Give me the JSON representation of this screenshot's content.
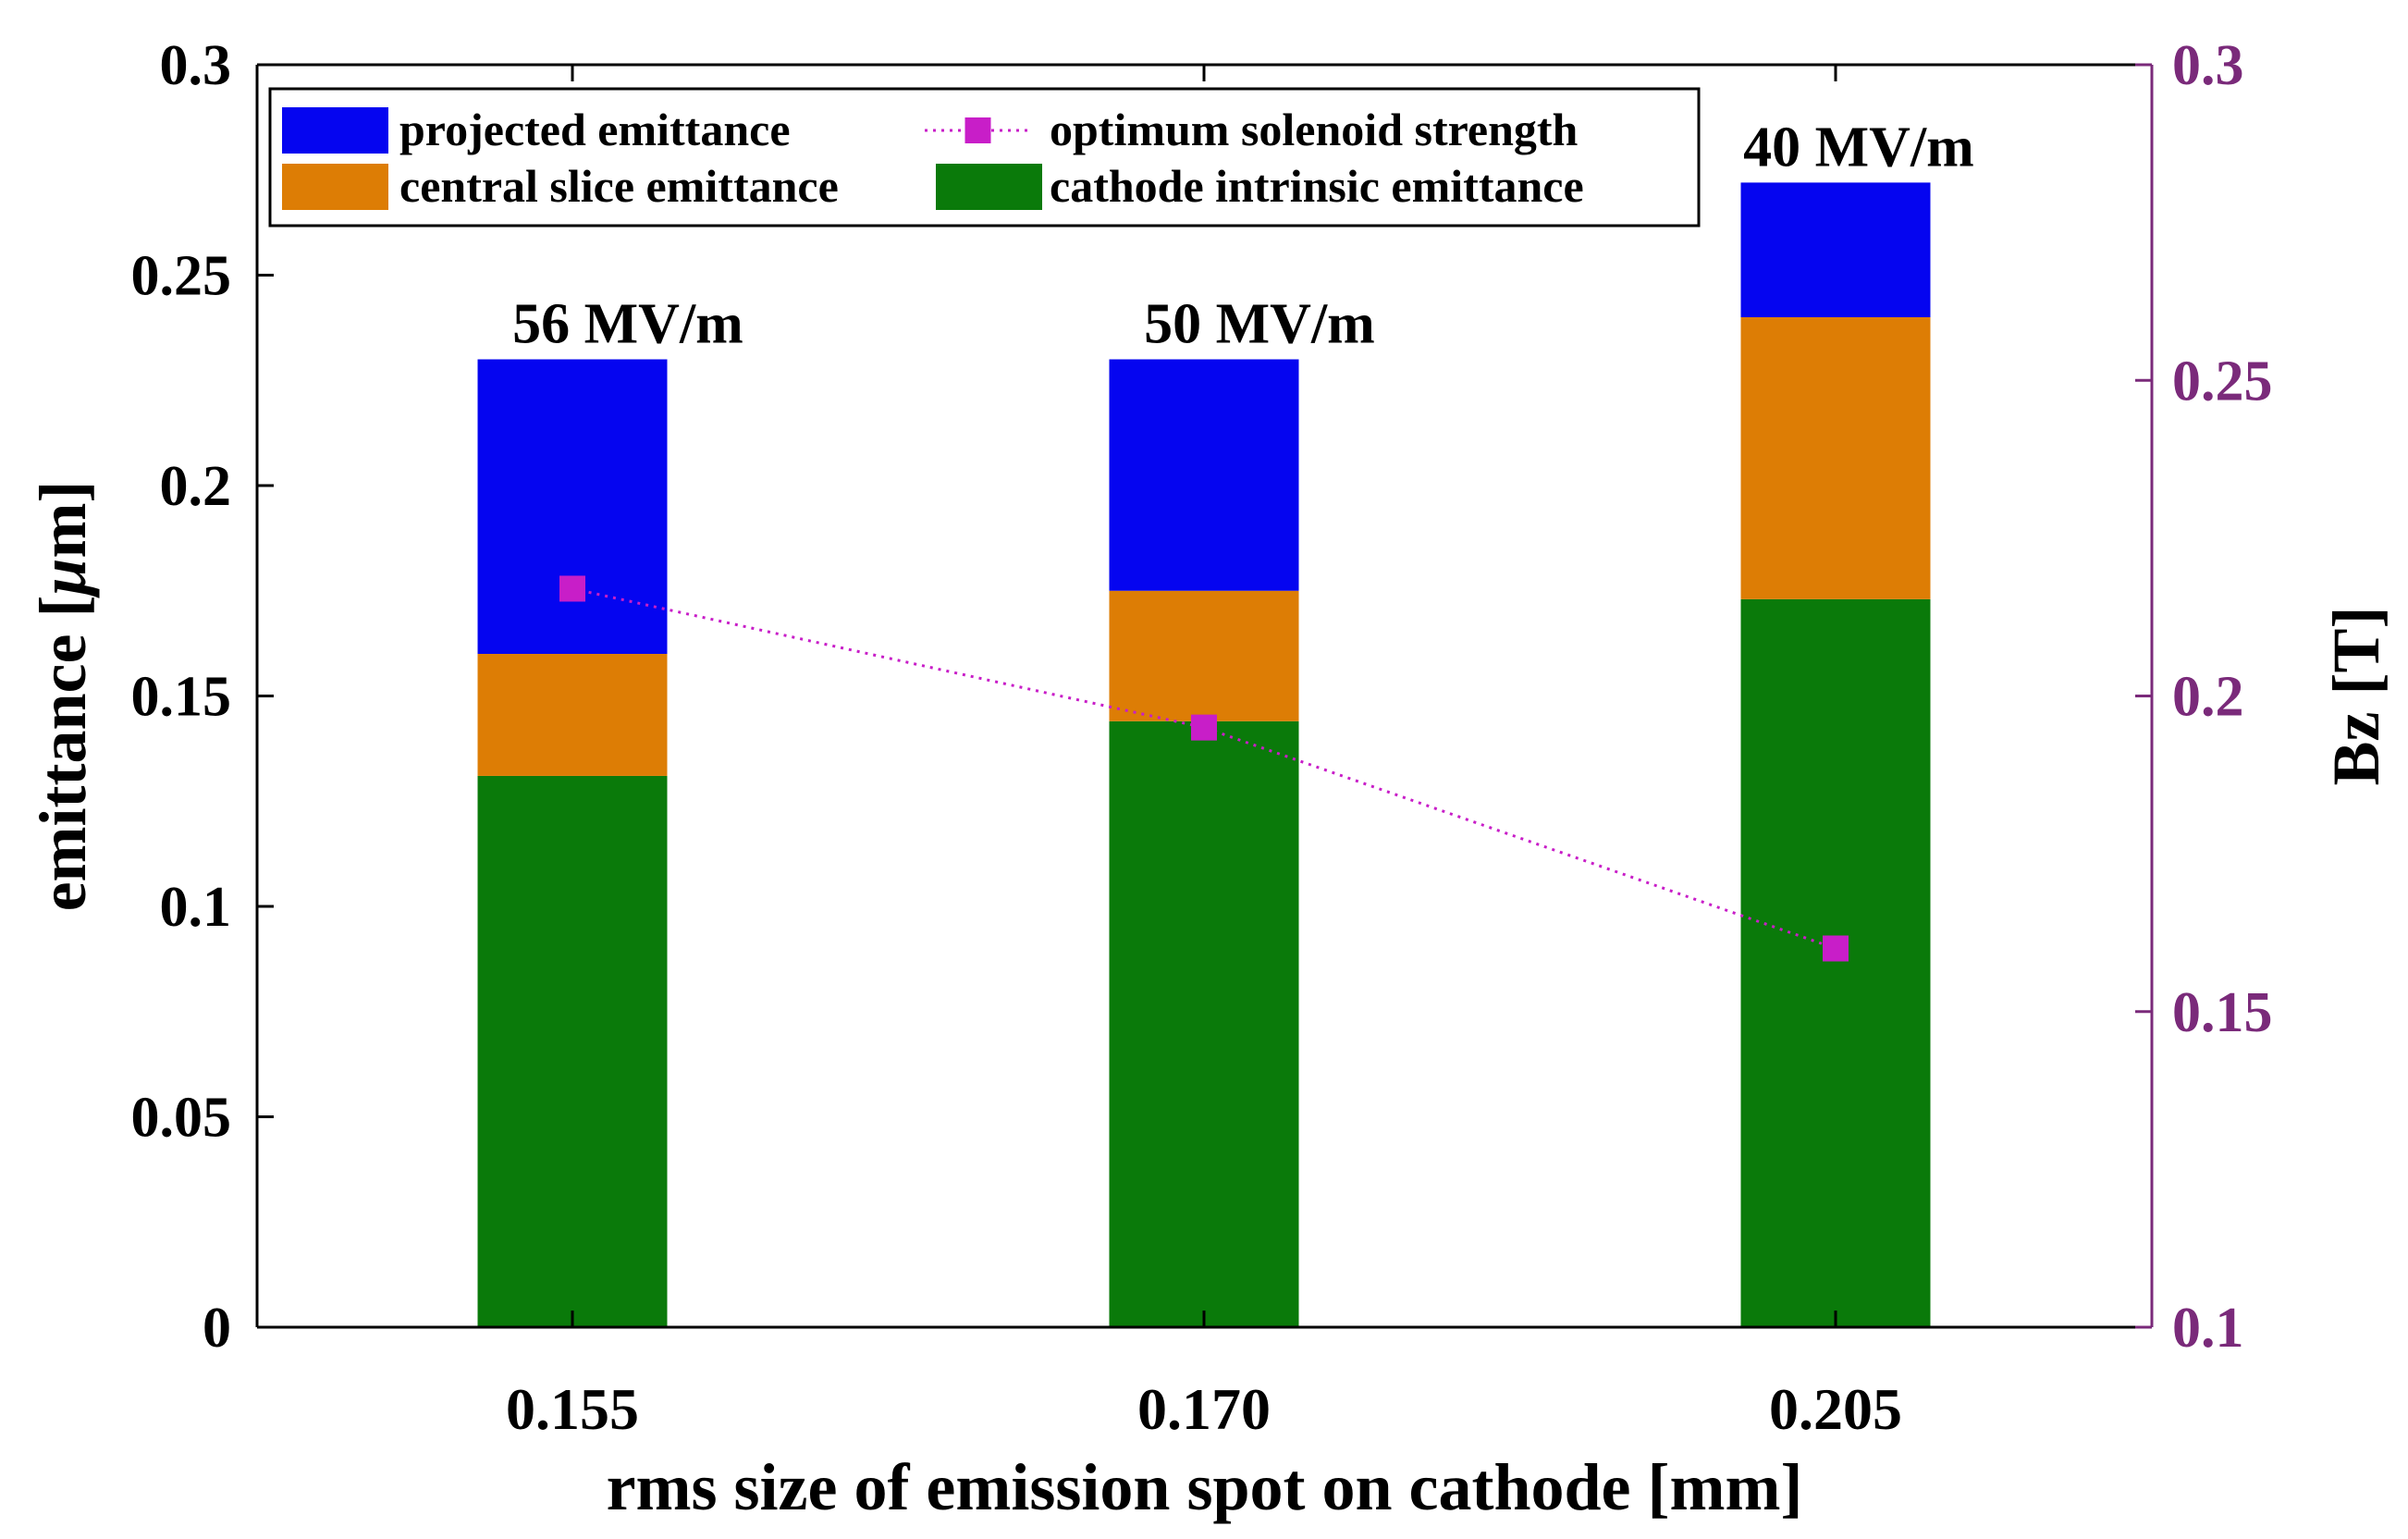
{
  "chart_data": {
    "type": "bar",
    "stacked": true,
    "title": "",
    "xlabel": "rms size of emission spot on cathode [mm]",
    "ylabel_prefix": "emittance [",
    "ylabel_mu": "μ",
    "ylabel_suffix": "m]",
    "ylabel_right": "Bz [T]",
    "categories": [
      "0.155",
      "0.170",
      "0.205"
    ],
    "ylim": [
      0,
      0.3
    ],
    "yticks": [
      "0",
      "0.05",
      "0.1",
      "0.15",
      "0.2",
      "0.25",
      "0.3"
    ],
    "y2lim": [
      0.1,
      0.3
    ],
    "y2ticks": [
      "0.1",
      "0.15",
      "0.2",
      "0.25",
      "0.3"
    ],
    "series": [
      {
        "name": "cathode intrinsic emittance",
        "color": "#0a7a0a",
        "values": [
          0.131,
          0.144,
          0.173
        ]
      },
      {
        "name": "central slice emittance",
        "color": "#dd7d05",
        "values": [
          0.029,
          0.031,
          0.067
        ]
      },
      {
        "name": "projected emittance",
        "color": "#0505f0",
        "values": [
          0.07,
          0.055,
          0.032
        ]
      }
    ],
    "line_series": {
      "name": "optimum solenoid strength",
      "axis": "right",
      "color": "#c81ec8",
      "values": [
        0.217,
        0.195,
        0.16
      ]
    },
    "bar_labels": [
      "56 MV/m",
      "50 MV/m",
      "40 MV/m"
    ],
    "legend_position": "top-left",
    "right_axis_color": "#7a2a7a"
  }
}
